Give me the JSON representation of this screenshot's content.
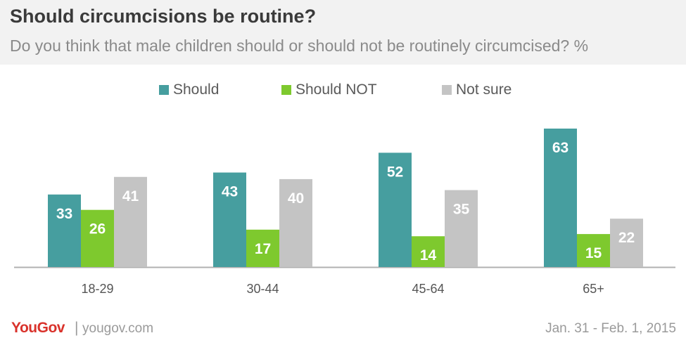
{
  "header": {
    "title": "Should circumcisions  be routine?",
    "subtitle": "Do you think that male children should or should not be routinely circumcised? %"
  },
  "colors": {
    "should": "#469e9f",
    "should_not": "#7ec92e",
    "not_sure": "#c4c4c4",
    "brand": "#d9322b"
  },
  "chart_data": {
    "type": "bar",
    "title": "Should circumcisions  be routine?",
    "subtitle": "Do you think that male children should or should not be routinely circumcised? %",
    "categories": [
      "18-29",
      "30-44",
      "45-64",
      "65+"
    ],
    "series": [
      {
        "name": "Should",
        "values": [
          33,
          43,
          52,
          63
        ]
      },
      {
        "name": "Should NOT",
        "values": [
          26,
          17,
          14,
          15
        ]
      },
      {
        "name": "Not sure",
        "values": [
          41,
          40,
          35,
          22
        ]
      }
    ],
    "ylim": [
      0,
      63
    ],
    "xlabel": "",
    "ylabel": "",
    "legend_position": "top",
    "grid": false
  },
  "footer": {
    "brand": "YouGov",
    "separator": "|",
    "site": "yougov.com",
    "date": "Jan. 31 - Feb. 1, 2015"
  }
}
